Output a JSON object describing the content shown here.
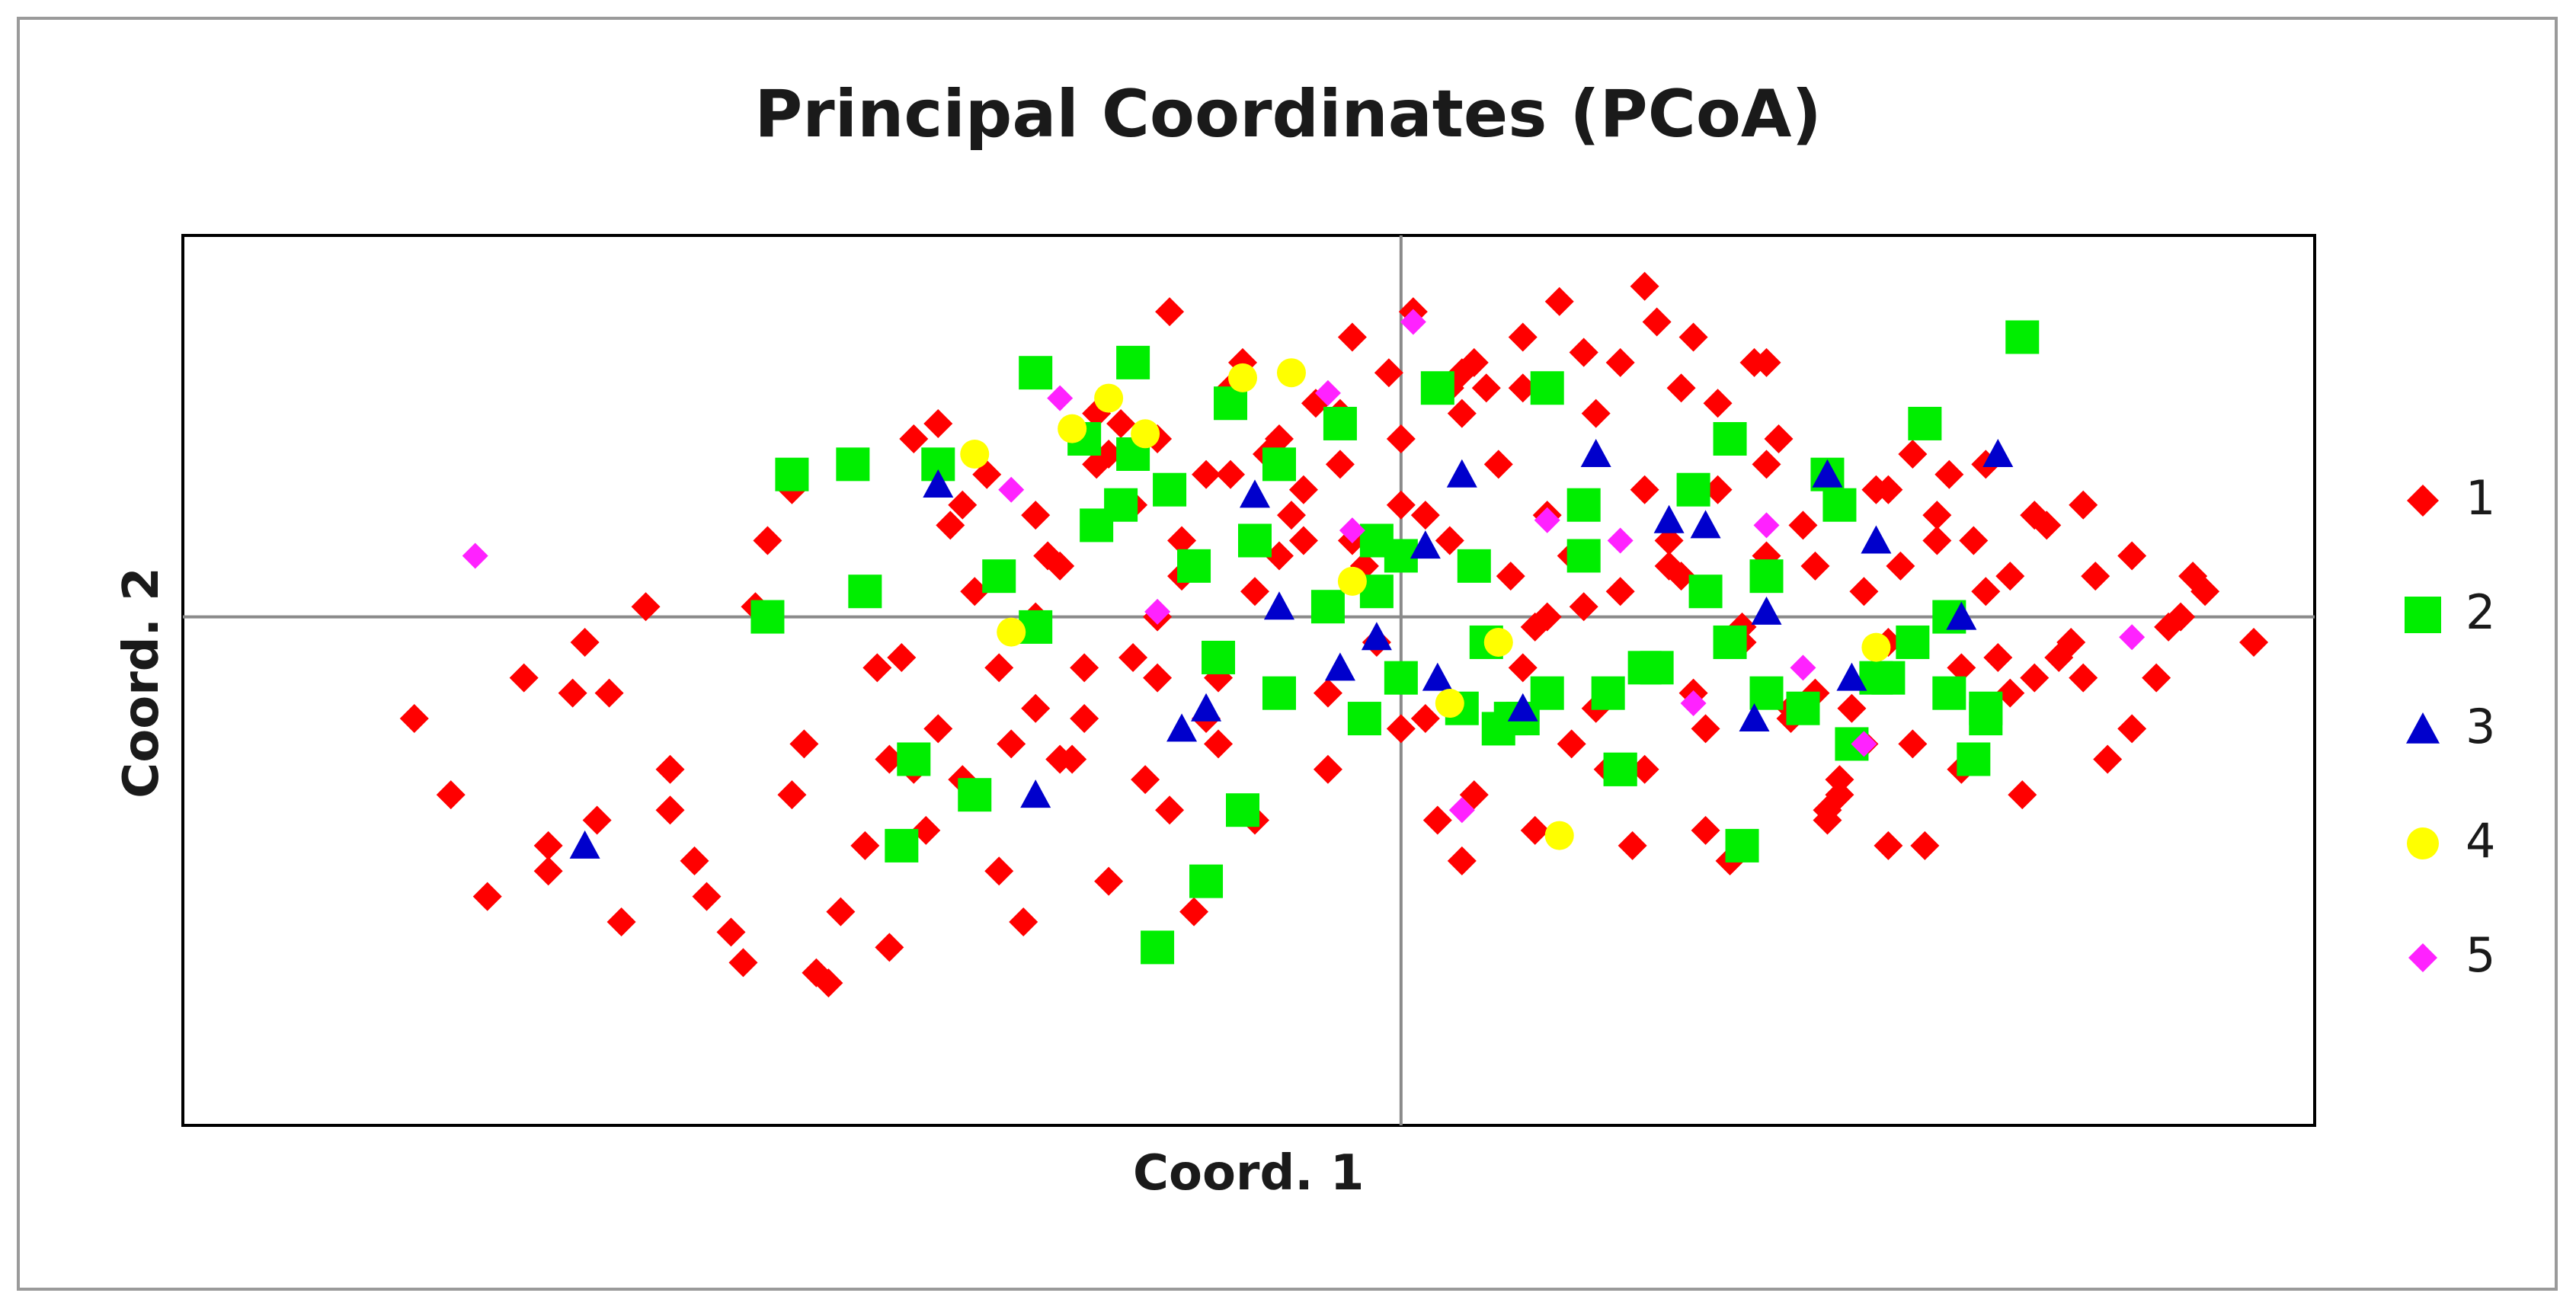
{
  "chart_data": {
    "type": "scatter",
    "title": "Principal Coordinates (PCoA)",
    "xlabel": "Coord. 1",
    "ylabel": "Coord. 2",
    "xlim": [
      -1.0,
      0.75
    ],
    "ylim": [
      -1.0,
      0.75
    ],
    "grid": false,
    "zero_lines": true,
    "legend_position": "right",
    "series": [
      {
        "name": "1",
        "color": "#ff0000",
        "marker": "diamond",
        "x": [
          -0.81,
          -0.78,
          -0.72,
          -0.7,
          -0.67,
          -0.65,
          -0.66,
          -0.6,
          -0.58,
          -0.55,
          -0.57,
          -0.48,
          -0.47,
          -0.44,
          -0.42,
          -0.4,
          -0.38,
          -0.35,
          -0.33,
          -0.32,
          -0.3,
          -0.28,
          -0.26,
          -0.25,
          -0.22,
          -0.2,
          -0.18,
          -0.16,
          -0.14,
          -0.12,
          -0.1,
          -0.08,
          -0.06,
          -0.05,
          -0.03,
          -0.02,
          0.0,
          0.02,
          0.04,
          0.06,
          0.08,
          0.1,
          0.12,
          0.14,
          0.16,
          0.18,
          0.2,
          0.22,
          0.24,
          0.26,
          0.28,
          0.3,
          0.32,
          0.34,
          0.36,
          0.38,
          0.4,
          0.42,
          0.44,
          0.46,
          0.48,
          0.5,
          0.52,
          0.55,
          0.58,
          0.6,
          0.63,
          0.66,
          -0.75,
          -0.7,
          -0.64,
          -0.6,
          -0.54,
          -0.5,
          -0.46,
          -0.43,
          -0.39,
          -0.36,
          -0.31,
          -0.29,
          -0.24,
          -0.21,
          -0.17,
          -0.13,
          -0.09,
          -0.04,
          0.01,
          0.03,
          0.07,
          0.11,
          0.15,
          0.19,
          0.23,
          0.27,
          0.31,
          0.35,
          0.39,
          0.43,
          0.47,
          0.51,
          0.56,
          0.62,
          0.65,
          -0.68,
          -0.62,
          -0.53,
          -0.49,
          -0.41,
          -0.37,
          -0.34,
          -0.27,
          -0.23,
          -0.19,
          -0.15,
          -0.11,
          -0.07,
          -0.01,
          0.05,
          0.09,
          0.13,
          0.17,
          0.21,
          0.25,
          0.29,
          0.33,
          0.37,
          0.41,
          0.45,
          0.49,
          0.53,
          0.57,
          -0.52,
          -0.45,
          -0.38,
          -0.3,
          -0.25,
          -0.2,
          -0.15,
          -0.1,
          -0.05,
          0.0,
          0.05,
          0.1,
          0.15,
          0.2,
          0.25,
          0.3,
          0.35,
          0.4,
          -0.42,
          -0.33,
          -0.22,
          -0.12,
          -0.02,
          0.08,
          0.18,
          0.28,
          0.38,
          0.48,
          -0.36,
          -0.26,
          -0.16,
          -0.06,
          0.04,
          0.14,
          0.24,
          0.34,
          0.44,
          0.54,
          -0.5,
          -0.4,
          -0.3,
          -0.2,
          -0.1,
          0.0,
          0.1,
          0.2,
          0.3,
          0.4,
          0.5,
          0.6,
          -0.28,
          -0.18,
          -0.08,
          0.02,
          0.12,
          0.22,
          0.32,
          0.42,
          0.52,
          -0.14,
          -0.04,
          0.06,
          0.16,
          0.26,
          0.36,
          0.46,
          0.56,
          0.64,
          0.7,
          -0.24,
          0.11,
          0.23,
          0.05,
          -0.19,
          0.15
        ],
        "y": [
          -0.2,
          -0.35,
          -0.12,
          -0.5,
          -0.05,
          -0.15,
          -0.4,
          -0.3,
          -0.48,
          -0.62,
          -0.55,
          -0.7,
          -0.72,
          -0.45,
          -0.65,
          -0.3,
          -0.22,
          0.05,
          -0.5,
          -0.25,
          0.2,
          0.1,
          -0.1,
          0.3,
          -0.08,
          0.35,
          0.15,
          -0.2,
          0.45,
          0.05,
          -0.15,
          0.25,
          -0.3,
          0.4,
          0.1,
          -0.05,
          0.35,
          -0.2,
          0.15,
          -0.35,
          0.3,
          -0.1,
          0.2,
          -0.25,
          0.4,
          0.05,
          -0.3,
          0.15,
          -0.15,
          0.25,
          -0.05,
          0.3,
          -0.2,
          0.1,
          -0.35,
          0.05,
          0.25,
          -0.25,
          0.15,
          -0.1,
          0.3,
          -0.15,
          0.2,
          -0.05,
          -0.28,
          0.12,
          -0.02,
          0.05,
          -0.55,
          -0.45,
          -0.6,
          -0.38,
          -0.68,
          -0.35,
          -0.58,
          -0.1,
          -0.42,
          0.22,
          -0.6,
          0.12,
          -0.52,
          -0.32,
          -0.58,
          0.5,
          0.2,
          0.55,
          0.6,
          -0.4,
          0.45,
          -0.42,
          0.52,
          -0.45,
          0.45,
          -0.48,
          0.35,
          -0.4,
          0.25,
          -0.45,
          0.15,
          -0.35,
          0.22,
          -0.12,
          0.08,
          -0.15,
          0.02,
          0.02,
          -0.25,
          -0.08,
          0.18,
          0.28,
          -0.28,
          0.38,
          -0.38,
          -0.12,
          0.32,
          0.42,
          0.48,
          -0.48,
          0.08,
          0.62,
          -0.3,
          0.58,
          -0.22,
          0.5,
          0.18,
          -0.18,
          0.1,
          0.28,
          -0.08,
          0.18,
          0.08,
          0.15,
          0.3,
          0.38,
          -0.18,
          0.4,
          0.0,
          -0.25,
          0.12,
          0.3,
          0.22,
          0.4,
          0.55,
          0.02,
          0.65,
          -0.42,
          0.5,
          -0.38,
          -0.45,
          -0.28,
          -0.1,
          0.22,
          -0.4,
          0.05,
          -0.05,
          0.5,
          -0.02,
          -0.25,
          0.05,
          -0.32,
          -0.2,
          0.28,
          -0.15,
          0.45,
          0.12,
          0.55,
          -0.15,
          0.2,
          -0.08,
          0.25,
          0.35,
          0.0,
          -0.12,
          0.35,
          -0.22,
          0.45,
          0.25,
          0.12,
          -0.05,
          0.08,
          -0.22,
          -0.28,
          0.08,
          0.15,
          0.2,
          0.0,
          0.1,
          -0.18,
          0.32,
          -0.12,
          0.28,
          0.15,
          0.5,
          -0.18,
          0.42,
          -0.32,
          -0.3,
          -0.12,
          0.0,
          -0.05,
          0.32,
          -0.02,
          0.08,
          0.48,
          0.6,
          0.52
        ],
        "marker_size": 38
      },
      {
        "name": "2",
        "color": "#00ee00",
        "marker": "square",
        "x": [
          -0.5,
          -0.44,
          -0.52,
          -0.38,
          -0.4,
          -0.35,
          -0.3,
          -0.26,
          -0.22,
          -0.19,
          -0.17,
          -0.14,
          -0.1,
          -0.06,
          -0.02,
          0.0,
          0.03,
          0.06,
          0.09,
          0.12,
          0.15,
          0.18,
          0.21,
          0.24,
          0.27,
          0.3,
          0.33,
          0.36,
          0.39,
          0.42,
          0.45,
          0.48,
          0.51,
          -0.45,
          -0.3,
          -0.25,
          -0.2,
          -0.15,
          -0.1,
          -0.05,
          0.0,
          0.05,
          0.1,
          0.15,
          0.2,
          0.25,
          0.3,
          0.35,
          0.4,
          0.45,
          -0.41,
          -0.33,
          -0.23,
          -0.13,
          -0.03,
          0.07,
          0.17,
          0.27,
          0.37,
          0.47,
          -0.22,
          -0.12,
          -0.02,
          0.08,
          0.18,
          0.28,
          -0.16,
          0.12,
          0.43,
          0.48
        ],
        "y": [
          0.28,
          0.05,
          0.0,
          0.3,
          -0.28,
          -0.35,
          0.48,
          0.35,
          0.5,
          0.25,
          0.1,
          0.42,
          0.3,
          0.02,
          0.15,
          -0.12,
          0.45,
          0.1,
          -0.2,
          -0.15,
          0.12,
          -0.3,
          -0.1,
          0.25,
          -0.05,
          0.08,
          -0.18,
          0.22,
          -0.12,
          -0.05,
          -0.15,
          -0.2,
          0.55,
          0.3,
          -0.02,
          0.18,
          -0.65,
          -0.08,
          -0.15,
          0.38,
          0.12,
          -0.18,
          -0.2,
          0.22,
          -0.1,
          0.05,
          -0.15,
          0.28,
          -0.12,
          0.0,
          -0.45,
          0.08,
          0.22,
          -0.38,
          -0.2,
          -0.05,
          -0.15,
          0.35,
          -0.25,
          -0.28,
          0.32,
          0.15,
          0.05,
          -0.22,
          -0.3,
          -0.45,
          -0.52,
          0.45,
          0.38,
          -0.18
        ],
        "marker_size": 44
      },
      {
        "name": "3",
        "color": "#0000cc",
        "marker": "triangle",
        "x": [
          -0.67,
          -0.38,
          -0.3,
          -0.18,
          -0.16,
          -0.12,
          -0.1,
          -0.05,
          -0.02,
          0.02,
          0.03,
          0.05,
          0.1,
          0.16,
          0.22,
          0.25,
          0.29,
          0.3,
          0.35,
          0.37,
          0.39,
          0.46,
          0.49
        ],
        "y": [
          -0.45,
          0.26,
          -0.35,
          -0.22,
          -0.18,
          0.24,
          0.02,
          -0.1,
          -0.04,
          0.14,
          -0.12,
          0.28,
          -0.18,
          0.32,
          0.19,
          0.18,
          -0.2,
          0.01,
          0.28,
          -0.12,
          0.15,
          0.0,
          0.32
        ],
        "marker_size": 40
      },
      {
        "name": "4",
        "color": "#ffff00",
        "marker": "circle",
        "x": [
          -0.35,
          -0.32,
          -0.27,
          -0.24,
          -0.21,
          -0.13,
          -0.09,
          -0.04,
          0.04,
          0.08,
          0.13,
          0.39
        ],
        "y": [
          0.32,
          -0.03,
          0.37,
          0.43,
          0.36,
          0.47,
          0.48,
          0.07,
          -0.17,
          -0.05,
          -0.43,
          -0.06
        ],
        "marker_size": 38
      },
      {
        "name": "5",
        "color": "#ff22ff",
        "marker": "diamond",
        "x": [
          -0.76,
          -0.32,
          -0.28,
          -0.2,
          -0.04,
          -0.06,
          0.01,
          0.05,
          0.12,
          0.18,
          0.24,
          0.3,
          0.33,
          0.38,
          0.6
        ],
        "y": [
          0.12,
          0.25,
          0.43,
          0.01,
          0.17,
          0.44,
          0.58,
          -0.38,
          0.19,
          0.15,
          -0.17,
          0.18,
          -0.1,
          -0.25,
          -0.04
        ],
        "marker_size": 34
      }
    ]
  }
}
